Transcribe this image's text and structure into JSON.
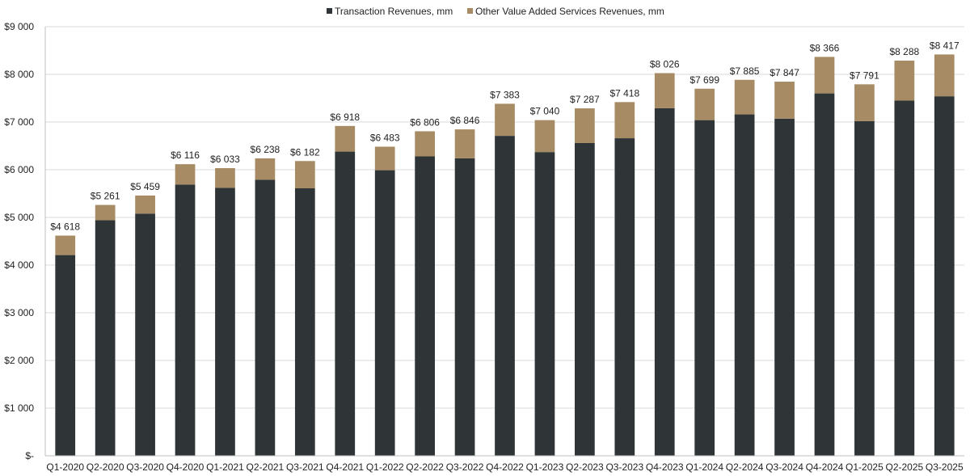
{
  "chart_data": {
    "type": "bar",
    "stacked": true,
    "categories": [
      "Q1-2020",
      "Q2-2020",
      "Q3-2020",
      "Q4-2020",
      "Q1-2021",
      "Q2-2021",
      "Q3-2021",
      "Q4-2021",
      "Q1-2022",
      "Q2-2022",
      "Q3-2022",
      "Q4-2022",
      "Q1-2023",
      "Q2-2023",
      "Q3-2023",
      "Q4-2023",
      "Q1-2024",
      "Q2-2024",
      "Q3-2024",
      "Q4-2024",
      "Q1-2025",
      "Q2-2025",
      "Q3-2025"
    ],
    "series": [
      {
        "name": "Transaction Revenues, mm",
        "color": "#2f3537",
        "values": [
          4210,
          4940,
          5080,
          5690,
          5620,
          5790,
          5610,
          6380,
          5990,
          6280,
          6240,
          6710,
          6370,
          6560,
          6660,
          7290,
          7040,
          7160,
          7070,
          7600,
          7020,
          7450,
          7540
        ]
      },
      {
        "name": "Other Value Added Services Revenues, mm",
        "color": "#a68b64",
        "values": [
          408,
          321,
          379,
          426,
          413,
          448,
          572,
          538,
          493,
          526,
          606,
          673,
          670,
          727,
          758,
          736,
          659,
          725,
          777,
          766,
          771,
          838,
          877
        ]
      }
    ],
    "totals_labels": [
      "$4 618",
      "$5 261",
      "$5 459",
      "$6 116",
      "$6 033",
      "$6 238",
      "$6 182",
      "$6 918",
      "$6 483",
      "$6 806",
      "$6 846",
      "$7 383",
      "$7 040",
      "$7 287",
      "$7 418",
      "$8 026",
      "$7 699",
      "$7 885",
      "$7 847",
      "$8 366",
      "$7 791",
      "$8 288",
      "$8 417"
    ],
    "y_ticks": [
      0,
      1000,
      2000,
      3000,
      4000,
      5000,
      6000,
      7000,
      8000,
      9000
    ],
    "y_tick_labels": [
      "$-",
      "$1 000",
      "$2 000",
      "$3 000",
      "$4 000",
      "$5 000",
      "$6 000",
      "$7 000",
      "$8 000",
      "$9 000"
    ],
    "ylim": [
      0,
      9000
    ],
    "grid": "horizontal",
    "legend_position": "top-center"
  }
}
